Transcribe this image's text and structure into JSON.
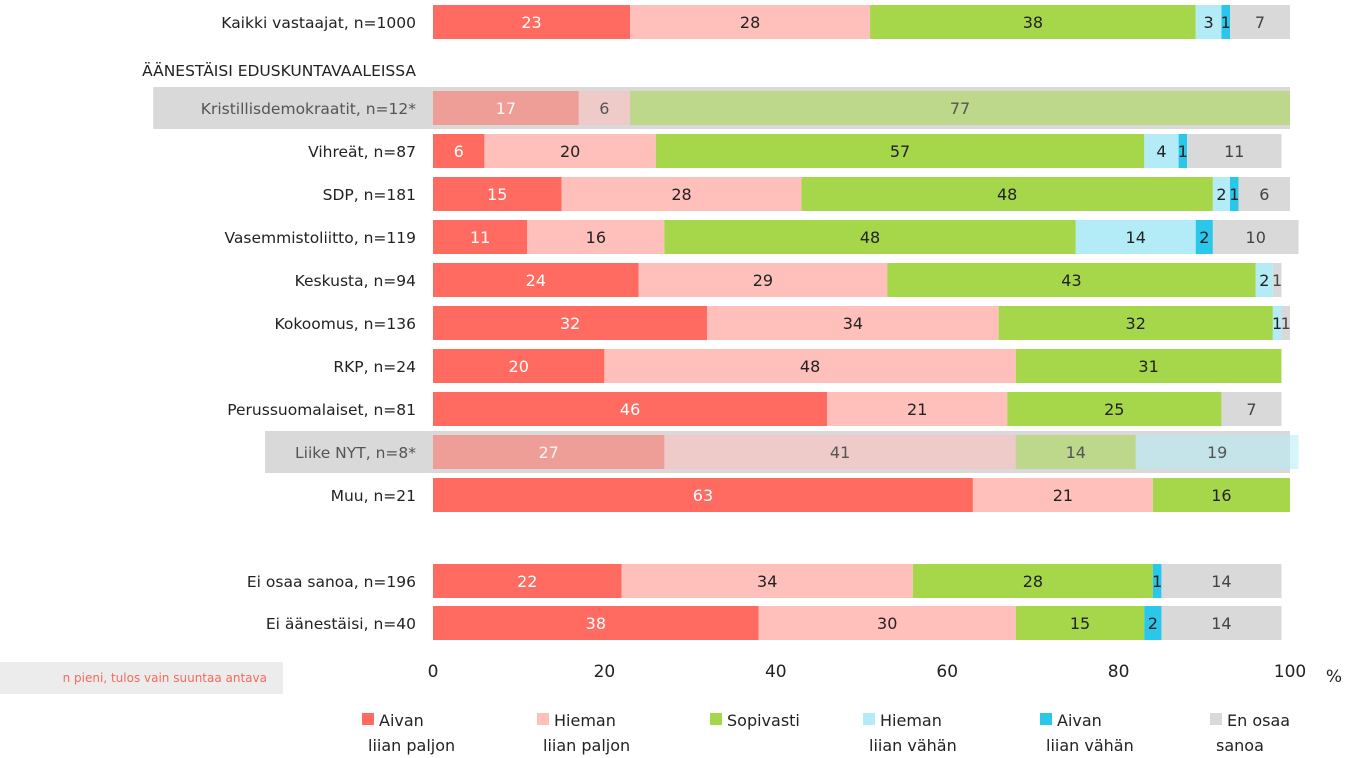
{
  "chart_data": {
    "type": "bar",
    "orientation": "horizontal",
    "stacked": true,
    "section_label": "ÄÄNESTÄISI EDUSKUNTAVAALEISSA",
    "categories": [
      "Kaikki vastaajat, n=1000",
      "Kristillisdemokraatit, n=12*",
      "Vihreät, n=87",
      "SDP, n=181",
      "Vasemmistoliitto, n=119",
      "Keskusta, n=94",
      "Kokoomus, n=136",
      "RKP, n=24",
      "Perussuomalaiset, n=81",
      "Liike NYT, n=8*",
      "Muu, n=21",
      "Ei osaa sanoa, n=196",
      "Ei äänestäisi, n=40"
    ],
    "highlighted": [
      "Kristillisdemokraatit, n=12*",
      "Liike NYT, n=8*"
    ],
    "series": [
      {
        "name": "Aivan liian paljon",
        "legend_lines": [
          "Aivan",
          "liian paljon"
        ],
        "color": "#ff6b61",
        "label_color": "#ffffff",
        "values": [
          23,
          17,
          6,
          15,
          11,
          24,
          32,
          20,
          46,
          27,
          63,
          22,
          38
        ]
      },
      {
        "name": "Hieman liian paljon",
        "legend_lines": [
          "Hieman",
          "liian paljon"
        ],
        "color": "#ffc0bb",
        "label_color": "#222222",
        "values": [
          28,
          6,
          20,
          28,
          16,
          29,
          34,
          48,
          21,
          41,
          21,
          34,
          30
        ]
      },
      {
        "name": "Sopivasti",
        "legend_lines": [
          "Sopivasti"
        ],
        "color": "#a6d64a",
        "label_color": "#222222",
        "values": [
          38,
          77,
          57,
          48,
          48,
          43,
          32,
          31,
          25,
          14,
          16,
          28,
          15
        ]
      },
      {
        "name": "Hieman liian vähän",
        "legend_lines": [
          "Hieman",
          "liian vähän"
        ],
        "color": "#b3ecf7",
        "label_color": "#222222",
        "values": [
          3,
          0,
          4,
          2,
          14,
          2,
          1,
          0,
          0,
          19,
          0,
          0,
          0
        ]
      },
      {
        "name": "Aivan liian vähän",
        "legend_lines": [
          "Aivan",
          "liian vähän"
        ],
        "color": "#29c7ea",
        "label_color": "#222222",
        "values": [
          1,
          0,
          1,
          1,
          2,
          0,
          0,
          0,
          0,
          0,
          0,
          1,
          2
        ]
      },
      {
        "name": "En osaa sanoa",
        "legend_lines": [
          "En osaa",
          "sanoa"
        ],
        "color": "#d9d9d9",
        "label_color": "#444444",
        "values": [
          7,
          0,
          11,
          6,
          10,
          1,
          1,
          0,
          7,
          0,
          0,
          14,
          14
        ]
      }
    ],
    "xlim": [
      0,
      100
    ],
    "xticks": [
      0,
      20,
      40,
      60,
      80,
      100
    ],
    "x_unit": "%",
    "footnote": "n pieni, tulos vain suuntaa antava",
    "legend_position": "bottom"
  }
}
